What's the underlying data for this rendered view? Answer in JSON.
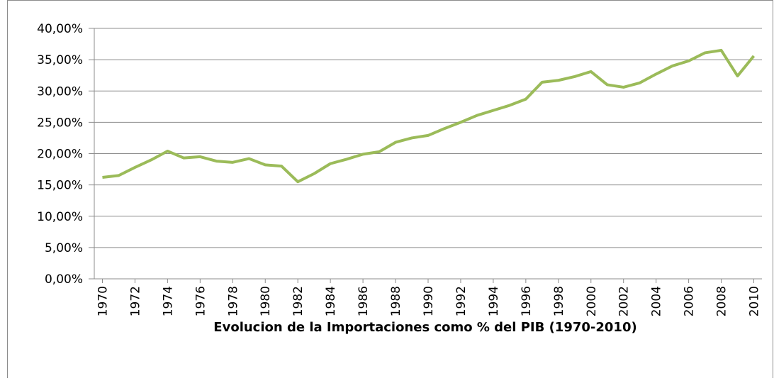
{
  "chart_data": {
    "type": "line",
    "x_label": "Evolucion de la Importaciones como % del PIB (1970-2010)",
    "x": [
      1970,
      1971,
      1972,
      1973,
      1974,
      1975,
      1976,
      1977,
      1978,
      1979,
      1980,
      1981,
      1982,
      1983,
      1984,
      1985,
      1986,
      1987,
      1988,
      1989,
      1990,
      1991,
      1992,
      1993,
      1994,
      1995,
      1996,
      1997,
      1998,
      1999,
      2000,
      2001,
      2002,
      2003,
      2004,
      2005,
      2006,
      2007,
      2008,
      2009,
      2010
    ],
    "values": [
      16.2,
      16.5,
      17.8,
      19.0,
      20.4,
      19.3,
      19.5,
      18.8,
      18.6,
      19.2,
      18.2,
      18.0,
      15.5,
      16.8,
      18.4,
      19.1,
      19.9,
      20.3,
      21.8,
      22.5,
      22.9,
      24.0,
      25.0,
      26.1,
      26.9,
      27.7,
      28.7,
      31.4,
      31.7,
      32.3,
      33.1,
      31.0,
      30.6,
      31.3,
      32.7,
      34.0,
      34.8,
      36.1,
      36.5,
      32.4,
      35.6
    ],
    "color": "#9bbb59",
    "xlim": [
      1969.5,
      2010.5
    ],
    "xticks": [
      1970,
      1972,
      1974,
      1976,
      1978,
      1980,
      1982,
      1984,
      1986,
      1988,
      1990,
      1992,
      1994,
      1996,
      1998,
      2000,
      2002,
      2004,
      2006,
      2008,
      2010
    ],
    "ylim": [
      0,
      40
    ],
    "yticks": [
      {
        "value": 0,
        "label": "0,00%"
      },
      {
        "value": 5,
        "label": "5,00%"
      },
      {
        "value": 10,
        "label": "10,00%"
      },
      {
        "value": 15,
        "label": "15,00%"
      },
      {
        "value": 20,
        "label": "20,00%"
      },
      {
        "value": 25,
        "label": "25,00%"
      },
      {
        "value": 30,
        "label": "30,00%"
      },
      {
        "value": 35,
        "label": "35,00%"
      },
      {
        "value": 40,
        "label": "40,00%"
      }
    ],
    "grid": true
  }
}
